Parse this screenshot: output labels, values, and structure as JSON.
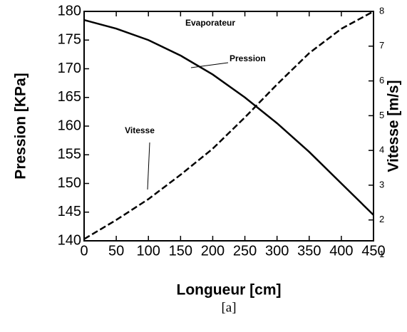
{
  "chart_data": {
    "type": "line",
    "annotations": [
      "Evaporateur",
      "Pression",
      "Vitesse"
    ],
    "xlabel": "Longueur [cm]",
    "ylabel": "Pression [KPa]",
    "y2label": "Vitesse [m/s]",
    "caption": "[a]",
    "x": [
      0,
      50,
      100,
      150,
      200,
      250,
      300,
      350,
      400,
      450
    ],
    "series": [
      {
        "name": "Pression",
        "color": "#000000",
        "dash": "solid",
        "values": [
          178.5,
          177,
          175,
          172.3,
          169,
          165,
          160.5,
          155.5,
          150,
          144.5
        ]
      },
      {
        "name": "Vitesse",
        "color": "#000000",
        "dash": "dashed",
        "axis": "y2",
        "values": [
          1.45,
          2.0,
          2.6,
          3.3,
          4.05,
          4.95,
          5.9,
          6.8,
          7.5,
          8.0
        ]
      }
    ],
    "xlim": [
      0,
      450
    ],
    "xticks": [
      0,
      50,
      100,
      150,
      200,
      250,
      300,
      350,
      400,
      450
    ],
    "ylim": [
      140,
      180
    ],
    "yticks": [
      140,
      145,
      150,
      155,
      160,
      165,
      170,
      175,
      180
    ],
    "y2lim": [
      1.4,
      8
    ],
    "y2ticks": [
      1,
      2,
      3,
      4,
      5,
      6,
      7,
      8
    ]
  }
}
